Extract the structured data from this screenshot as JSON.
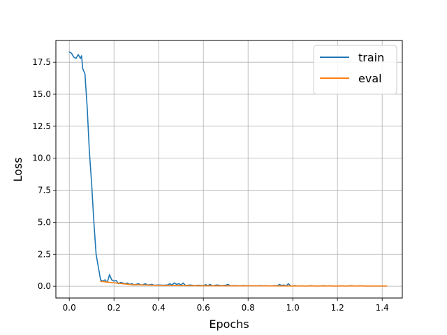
{
  "chart_data": {
    "type": "line",
    "title": "",
    "xlabel": "Epochs",
    "ylabel": "Loss",
    "xlim": [
      -0.06,
      1.49
    ],
    "ylim": [
      -0.92,
      19.2
    ],
    "xticks": [
      0.0,
      0.2,
      0.4,
      0.6,
      0.8,
      1.0,
      1.2,
      1.4
    ],
    "xtick_labels": [
      "0.0",
      "0.2",
      "0.4",
      "0.6",
      "0.8",
      "1.0",
      "1.2",
      "1.4"
    ],
    "yticks": [
      0.0,
      2.5,
      5.0,
      7.5,
      10.0,
      12.5,
      15.0,
      17.5
    ],
    "ytick_labels": [
      "0.0",
      "2.5",
      "5.0",
      "7.5",
      "10.0",
      "12.5",
      "15.0",
      "17.5"
    ],
    "grid": true,
    "legend_position": "top-right",
    "series": [
      {
        "name": "train",
        "color": "#1f77b4",
        "x": [
          0.0,
          0.01,
          0.02,
          0.03,
          0.04,
          0.05,
          0.055,
          0.06,
          0.07,
          0.08,
          0.09,
          0.1,
          0.11,
          0.12,
          0.125,
          0.13,
          0.14,
          0.15,
          0.16,
          0.17,
          0.18,
          0.19,
          0.2,
          0.21,
          0.22,
          0.23,
          0.24,
          0.25,
          0.26,
          0.27,
          0.28,
          0.29,
          0.3,
          0.31,
          0.32,
          0.33,
          0.34,
          0.35,
          0.36,
          0.37,
          0.38,
          0.4,
          0.42,
          0.44,
          0.45,
          0.46,
          0.47,
          0.48,
          0.49,
          0.5,
          0.51,
          0.52,
          0.54,
          0.56,
          0.58,
          0.6,
          0.61,
          0.62,
          0.63,
          0.64,
          0.66,
          0.68,
          0.7,
          0.71,
          0.72,
          0.74,
          0.76,
          0.78,
          0.8,
          0.82,
          0.84,
          0.85,
          0.86,
          0.88,
          0.9,
          0.92,
          0.93,
          0.94,
          0.95,
          0.96,
          0.97,
          0.98,
          0.99,
          1.0,
          1.01,
          1.02,
          1.04,
          1.06,
          1.08,
          1.1,
          1.12,
          1.13,
          1.14,
          1.15,
          1.16,
          1.18,
          1.2,
          1.22,
          1.24,
          1.26,
          1.28,
          1.3,
          1.32,
          1.34,
          1.36,
          1.38,
          1.4,
          1.42
        ],
        "y": [
          18.3,
          18.2,
          17.9,
          17.8,
          18.1,
          17.8,
          18.0,
          17.0,
          16.6,
          14.0,
          10.5,
          8.0,
          5.0,
          2.5,
          2.0,
          1.5,
          0.5,
          0.4,
          0.5,
          0.3,
          0.9,
          0.5,
          0.4,
          0.45,
          0.2,
          0.3,
          0.25,
          0.2,
          0.25,
          0.15,
          0.2,
          0.1,
          0.15,
          0.2,
          0.1,
          0.12,
          0.2,
          0.1,
          0.12,
          0.15,
          0.08,
          0.1,
          0.08,
          0.1,
          0.2,
          0.1,
          0.25,
          0.15,
          0.2,
          0.1,
          0.25,
          0.05,
          0.1,
          0.05,
          0.08,
          0.05,
          0.12,
          0.05,
          0.15,
          0.03,
          0.1,
          0.05,
          0.08,
          0.15,
          0.04,
          0.05,
          0.03,
          0.05,
          0.03,
          0.04,
          0.03,
          0.05,
          0.03,
          0.04,
          0.02,
          0.05,
          0.03,
          0.15,
          0.05,
          0.1,
          0.02,
          0.2,
          0.03,
          0.02,
          0.05,
          0.02,
          0.03,
          0.02,
          0.04,
          0.02,
          0.02,
          0.03,
          0.04,
          0.02,
          0.03,
          0.02,
          0.02,
          0.03,
          0.02,
          0.04,
          0.02,
          0.03,
          0.02,
          0.02,
          0.02,
          0.02,
          0.02,
          0.02
        ]
      },
      {
        "name": "eval",
        "color": "#ff7f0e",
        "x": [
          0.14,
          0.28,
          0.42,
          0.57,
          0.71,
          0.85,
          0.99,
          1.13,
          1.28,
          1.42
        ],
        "y": [
          0.38,
          0.12,
          0.06,
          0.04,
          0.03,
          0.03,
          0.02,
          0.02,
          0.02,
          0.02
        ]
      }
    ]
  }
}
